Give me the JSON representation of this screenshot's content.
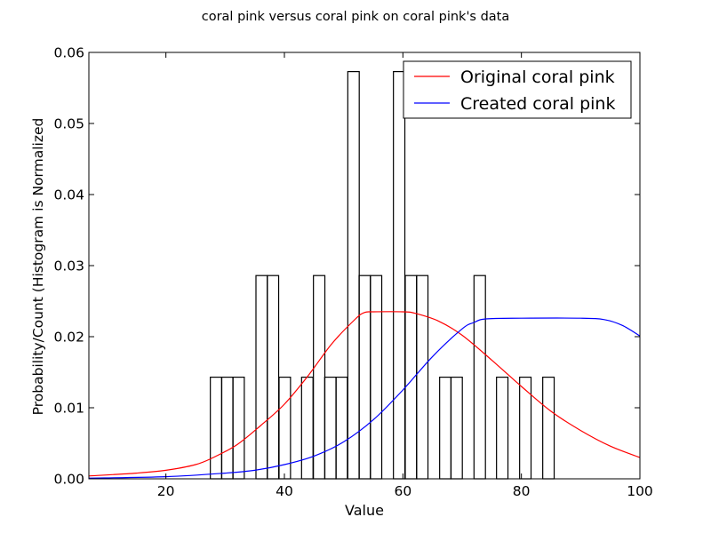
{
  "chart_data": {
    "type": "bar",
    "title": "coral pink versus coral pink on coral pink's data",
    "xlabel": "Value",
    "ylabel": "Probability/Count (Histogram is Normalized",
    "xlim": [
      7,
      100
    ],
    "ylim": [
      0,
      0.06
    ],
    "grid": false,
    "legend_position": "top-right",
    "x_ticks": [
      20,
      40,
      60,
      80,
      100
    ],
    "y_ticks": [
      0.0,
      0.01,
      0.02,
      0.03,
      0.04,
      0.05,
      0.06
    ],
    "x_tick_labels": [
      "20",
      "40",
      "60",
      "80",
      "100"
    ],
    "y_tick_labels": [
      "0.00",
      "0.01",
      "0.02",
      "0.03",
      "0.04",
      "0.05",
      "0.06"
    ],
    "histogram": {
      "bin_width": 1.93,
      "bins": [
        {
          "x0": 27.5,
          "value": 0.0143
        },
        {
          "x0": 29.4,
          "value": 0.0143
        },
        {
          "x0": 31.3,
          "value": 0.0143
        },
        {
          "x0": 35.2,
          "value": 0.0286
        },
        {
          "x0": 37.1,
          "value": 0.0286
        },
        {
          "x0": 39.1,
          "value": 0.0143
        },
        {
          "x0": 42.9,
          "value": 0.0143
        },
        {
          "x0": 44.9,
          "value": 0.0286
        },
        {
          "x0": 46.8,
          "value": 0.0143
        },
        {
          "x0": 48.7,
          "value": 0.0143
        },
        {
          "x0": 50.7,
          "value": 0.0573
        },
        {
          "x0": 52.6,
          "value": 0.0286
        },
        {
          "x0": 54.5,
          "value": 0.0286
        },
        {
          "x0": 58.4,
          "value": 0.0573
        },
        {
          "x0": 60.4,
          "value": 0.0286
        },
        {
          "x0": 62.3,
          "value": 0.0286
        },
        {
          "x0": 66.2,
          "value": 0.0143
        },
        {
          "x0": 68.1,
          "value": 0.0143
        },
        {
          "x0": 72.0,
          "value": 0.0286
        },
        {
          "x0": 75.8,
          "value": 0.0143
        },
        {
          "x0": 79.7,
          "value": 0.0143
        },
        {
          "x0": 83.6,
          "value": 0.0143
        }
      ]
    },
    "series": [
      {
        "name": "Original coral pink",
        "color": "#ff0000",
        "x": [
          7,
          15,
          20,
          25,
          28,
          32,
          36,
          40,
          44,
          48,
          52,
          53.5,
          55,
          60,
          62,
          66,
          70,
          75,
          80,
          85,
          90,
          95,
          100
        ],
        "y": [
          0.0004,
          0.0008,
          0.0012,
          0.002,
          0.003,
          0.0048,
          0.0075,
          0.0105,
          0.0145,
          0.019,
          0.0225,
          0.0234,
          0.0235,
          0.0235,
          0.0233,
          0.0222,
          0.0202,
          0.0167,
          0.013,
          0.0095,
          0.0068,
          0.0046,
          0.003
        ]
      },
      {
        "name": "Created coral pink",
        "color": "#0000ff",
        "x": [
          7,
          20,
          30,
          35,
          40,
          45,
          50,
          55,
          60,
          65,
          70,
          72,
          74,
          80,
          90,
          94,
          97,
          100
        ],
        "y": [
          0.0001,
          0.0003,
          0.0008,
          0.0012,
          0.002,
          0.0032,
          0.0052,
          0.0083,
          0.0125,
          0.0172,
          0.0211,
          0.022,
          0.0225,
          0.0226,
          0.0226,
          0.0224,
          0.0216,
          0.0201
        ]
      }
    ]
  }
}
